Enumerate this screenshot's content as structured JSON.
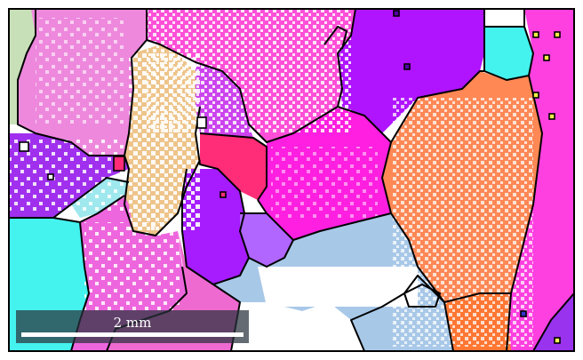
{
  "scale_bar": {
    "label": "2 mm"
  },
  "colors": {
    "background": "#ffffff",
    "boundary": "#000000",
    "magenta": "#ff1fff",
    "violet": "#a61cff",
    "pink": "#ff66dd",
    "light_pink": "#ee88dd",
    "orange": "#ff8855",
    "peach": "#eec48a",
    "cyan": "#44f2ee",
    "light_blue": "#a8c8e8",
    "sage": "#c8e0b8",
    "rose": "#ff2d77"
  }
}
